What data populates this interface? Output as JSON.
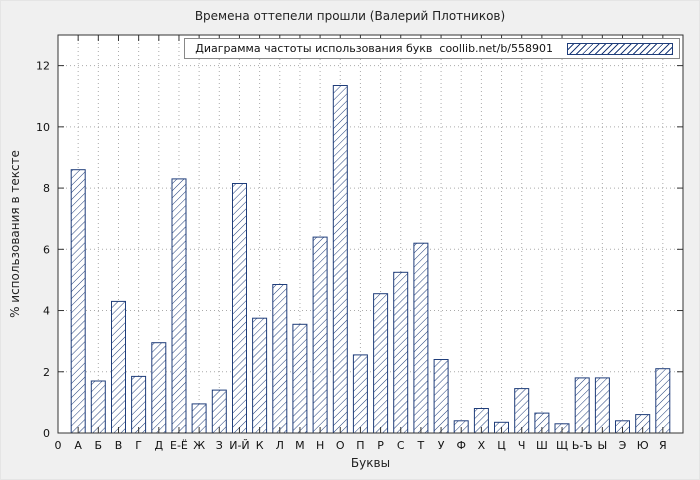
{
  "chart_data": {
    "type": "bar",
    "title": "Времена оттепели прошли (Валерий Плотников)",
    "legend_label": "Диаграмма частоты использования букв  coollib.net/b/558901",
    "xlabel": "Буквы",
    "ylabel": "% использования в тексте",
    "origin_label": "0",
    "categories": [
      "А",
      "Б",
      "В",
      "Г",
      "Д",
      "Е-Ё",
      "Ж",
      "З",
      "И-Й",
      "К",
      "Л",
      "М",
      "Н",
      "О",
      "П",
      "Р",
      "С",
      "Т",
      "У",
      "Ф",
      "Х",
      "Ц",
      "Ч",
      "Ш",
      "Щ",
      "Ь-Ъ",
      "Ы",
      "Э",
      "Ю",
      "Я"
    ],
    "values": [
      8.6,
      1.7,
      4.3,
      1.85,
      2.95,
      8.3,
      0.95,
      1.4,
      8.15,
      3.75,
      4.85,
      3.55,
      6.4,
      11.35,
      2.55,
      4.55,
      5.25,
      6.2,
      2.4,
      0.4,
      0.8,
      0.35,
      1.45,
      0.65,
      0.3,
      1.8,
      1.8,
      0.4,
      0.6,
      2.1
    ],
    "yticks": [
      0,
      2,
      4,
      6,
      8,
      10,
      12
    ],
    "ylim": [
      0,
      13
    ],
    "grid": true,
    "legend_position": "top-right-inside",
    "colors": {
      "bar": "#1f3d7a",
      "grid": "#aaaaaa",
      "plot_bg": "#ffffff",
      "page_bg": "#f0f0f0",
      "border": "#333333"
    }
  }
}
